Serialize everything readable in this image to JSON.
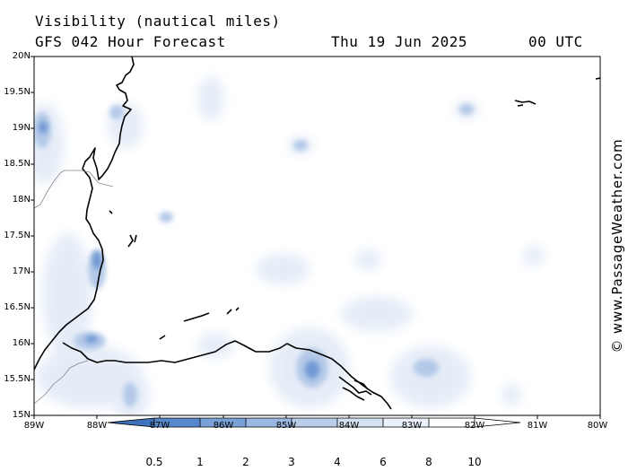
{
  "header": {
    "title": "Visibility (nautical miles)",
    "model": "GFS 042 Hour Forecast",
    "date": "Thu 19 Jun 2025",
    "time": "00 UTC"
  },
  "map": {
    "latitude_labels": [
      "20N",
      "19.5N",
      "19N",
      "18.5N",
      "18N",
      "17.5N",
      "17N",
      "16.5N",
      "16N",
      "15.5N",
      "15N"
    ],
    "longitude_labels": [
      "89W",
      "88W",
      "87W",
      "86W",
      "85W",
      "84W",
      "83W",
      "82W",
      "81W",
      "80W"
    ],
    "colors": {
      "land_outline": "#000000",
      "border": "#888888",
      "low_vis": "#4a7fc8",
      "mid_vis": "#a9c2e6",
      "high_vis": "#dfe8f6"
    }
  },
  "credit": "© www.PassageWeather.com",
  "colorbar": {
    "labels": [
      "0.5",
      "1",
      "2",
      "3",
      "4",
      "6",
      "8",
      "10"
    ],
    "colors": [
      "#3f72bd",
      "#5888cc",
      "#7aa0d8",
      "#9bb8e2",
      "#b8cdea",
      "#d4e1f3",
      "#ebf1fa",
      "#ffffff"
    ]
  }
}
